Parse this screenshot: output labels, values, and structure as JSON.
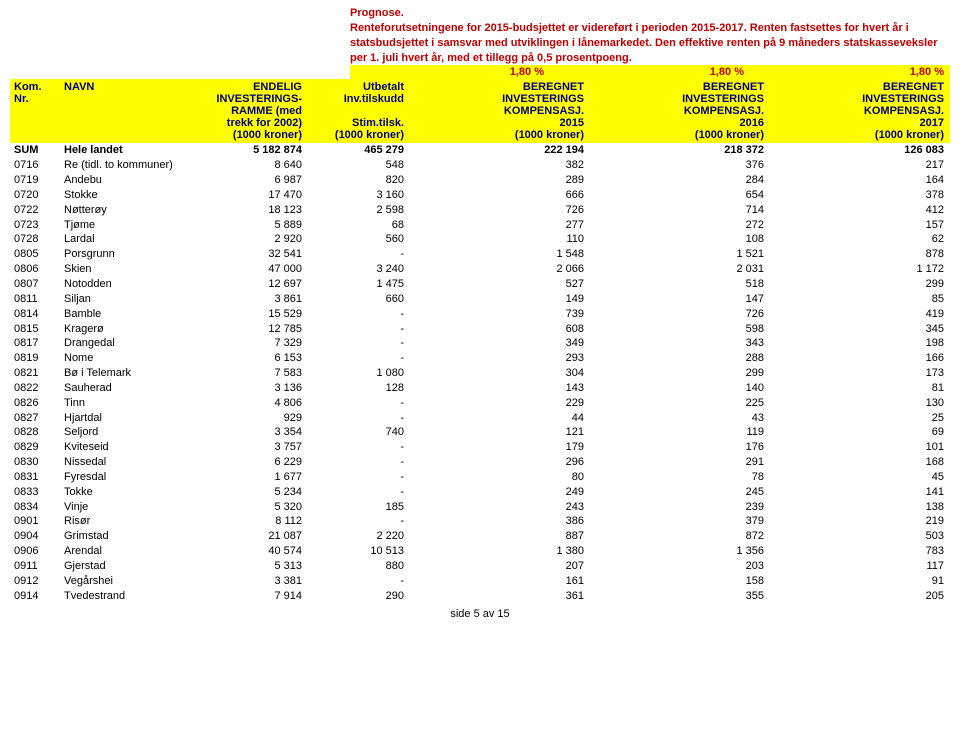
{
  "prognose": {
    "title": "Prognose.",
    "text": "Renteforutsetningene for 2015-budsjettet er videreført i perioden 2015-2017. Renten fastsettes for hvert år i statsbudsjettet i samsvar med utviklingen i lånemarkedet. Den effektive renten på 9 måneders statskasseveksler per 1. juli hvert år, med et tillegg på 0,5 prosentpoeng."
  },
  "pct": [
    "1,80 %",
    "1,80 %",
    "1,80 %"
  ],
  "header": {
    "c1l1": "Kom.",
    "c1l2": "Nr.",
    "c2l1": "NAVN",
    "c3l1": "ENDELIG",
    "c3l2": "INVESTERINGS-",
    "c3l3": "RAMME (med",
    "c3l4": "trekk for 2002)",
    "c3l5": "(1000 kroner)",
    "c4l1": "Utbetalt",
    "c4l2": "Inv.tilskudd",
    "c4l4": "Stim.tilsk.",
    "c4l5": "(1000 kroner)",
    "c5l1": "BEREGNET",
    "c5l2": "INVESTERINGS",
    "c5l3": "KOMPENSASJ.",
    "c5l4": "2015",
    "c5l5": "(1000 kroner)",
    "c6l1": "BEREGNET",
    "c6l2": "INVESTERINGS",
    "c6l3": "KOMPENSASJ.",
    "c6l4": "2016",
    "c6l5": "(1000 kroner)",
    "c7l1": "BEREGNET",
    "c7l2": "INVESTERINGS",
    "c7l3": "KOMPENSASJ.",
    "c7l4": "2017",
    "c7l5": "(1000 kroner)"
  },
  "sum": {
    "c1": "SUM",
    "c2": "Hele landet",
    "c3": "5 182 874",
    "c4": "465 279",
    "c5": "222 194",
    "c6": "218 372",
    "c7": "126 083"
  },
  "rows": [
    [
      "0716",
      "Re (tidl. to kommuner)",
      "8 640",
      "548",
      "382",
      "376",
      "217"
    ],
    [
      "0719",
      "Andebu",
      "6 987",
      "820",
      "289",
      "284",
      "164"
    ],
    [
      "0720",
      "Stokke",
      "17 470",
      "3 160",
      "666",
      "654",
      "378"
    ],
    [
      "0722",
      "Nøtterøy",
      "18 123",
      "2 598",
      "726",
      "714",
      "412"
    ],
    [
      "0723",
      "Tjøme",
      "5 889",
      "68",
      "277",
      "272",
      "157"
    ],
    [
      "0728",
      "Lardal",
      "2 920",
      "560",
      "110",
      "108",
      "62"
    ],
    [
      "0805",
      "Porsgrunn",
      "32 541",
      "-",
      "1 548",
      "1 521",
      "878"
    ],
    [
      "0806",
      "Skien",
      "47 000",
      "3 240",
      "2 066",
      "2 031",
      "1 172"
    ],
    [
      "0807",
      "Notodden",
      "12 697",
      "1 475",
      "527",
      "518",
      "299"
    ],
    [
      "0811",
      "Siljan",
      "3 861",
      "660",
      "149",
      "147",
      "85"
    ],
    [
      "0814",
      "Bamble",
      "15 529",
      "-",
      "739",
      "726",
      "419"
    ],
    [
      "0815",
      "Kragerø",
      "12 785",
      "-",
      "608",
      "598",
      "345"
    ],
    [
      "0817",
      "Drangedal",
      "7 329",
      "-",
      "349",
      "343",
      "198"
    ],
    [
      "0819",
      "Nome",
      "6 153",
      "-",
      "293",
      "288",
      "166"
    ],
    [
      "0821",
      "Bø i Telemark",
      "7 583",
      "1 080",
      "304",
      "299",
      "173"
    ],
    [
      "0822",
      "Sauherad",
      "3 136",
      "128",
      "143",
      "140",
      "81"
    ],
    [
      "0826",
      "Tinn",
      "4 806",
      "-",
      "229",
      "225",
      "130"
    ],
    [
      "0827",
      "Hjartdal",
      "929",
      "-",
      "44",
      "43",
      "25"
    ],
    [
      "0828",
      "Seljord",
      "3 354",
      "740",
      "121",
      "119",
      "69"
    ],
    [
      "0829",
      "Kviteseid",
      "3 757",
      "-",
      "179",
      "176",
      "101"
    ],
    [
      "0830",
      "Nissedal",
      "6 229",
      "-",
      "296",
      "291",
      "168"
    ],
    [
      "0831",
      "Fyresdal",
      "1 677",
      "-",
      "80",
      "78",
      "45"
    ],
    [
      "0833",
      "Tokke",
      "5 234",
      "-",
      "249",
      "245",
      "141"
    ],
    [
      "0834",
      "Vinje",
      "5 320",
      "185",
      "243",
      "239",
      "138"
    ],
    [
      "0901",
      "Risør",
      "8 112",
      "-",
      "386",
      "379",
      "219"
    ],
    [
      "0904",
      "Grimstad",
      "21 087",
      "2 220",
      "887",
      "872",
      "503"
    ],
    [
      "0906",
      "Arendal",
      "40 574",
      "10 513",
      "1 380",
      "1 356",
      "783"
    ],
    [
      "0911",
      "Gjerstad",
      "5 313",
      "880",
      "207",
      "203",
      "117"
    ],
    [
      "0912",
      "Vegårshei",
      "3 381",
      "-",
      "161",
      "158",
      "91"
    ],
    [
      "0914",
      "Tvedestrand",
      "7 914",
      "290",
      "361",
      "355",
      "205"
    ]
  ],
  "footer": "side 5 av 15"
}
